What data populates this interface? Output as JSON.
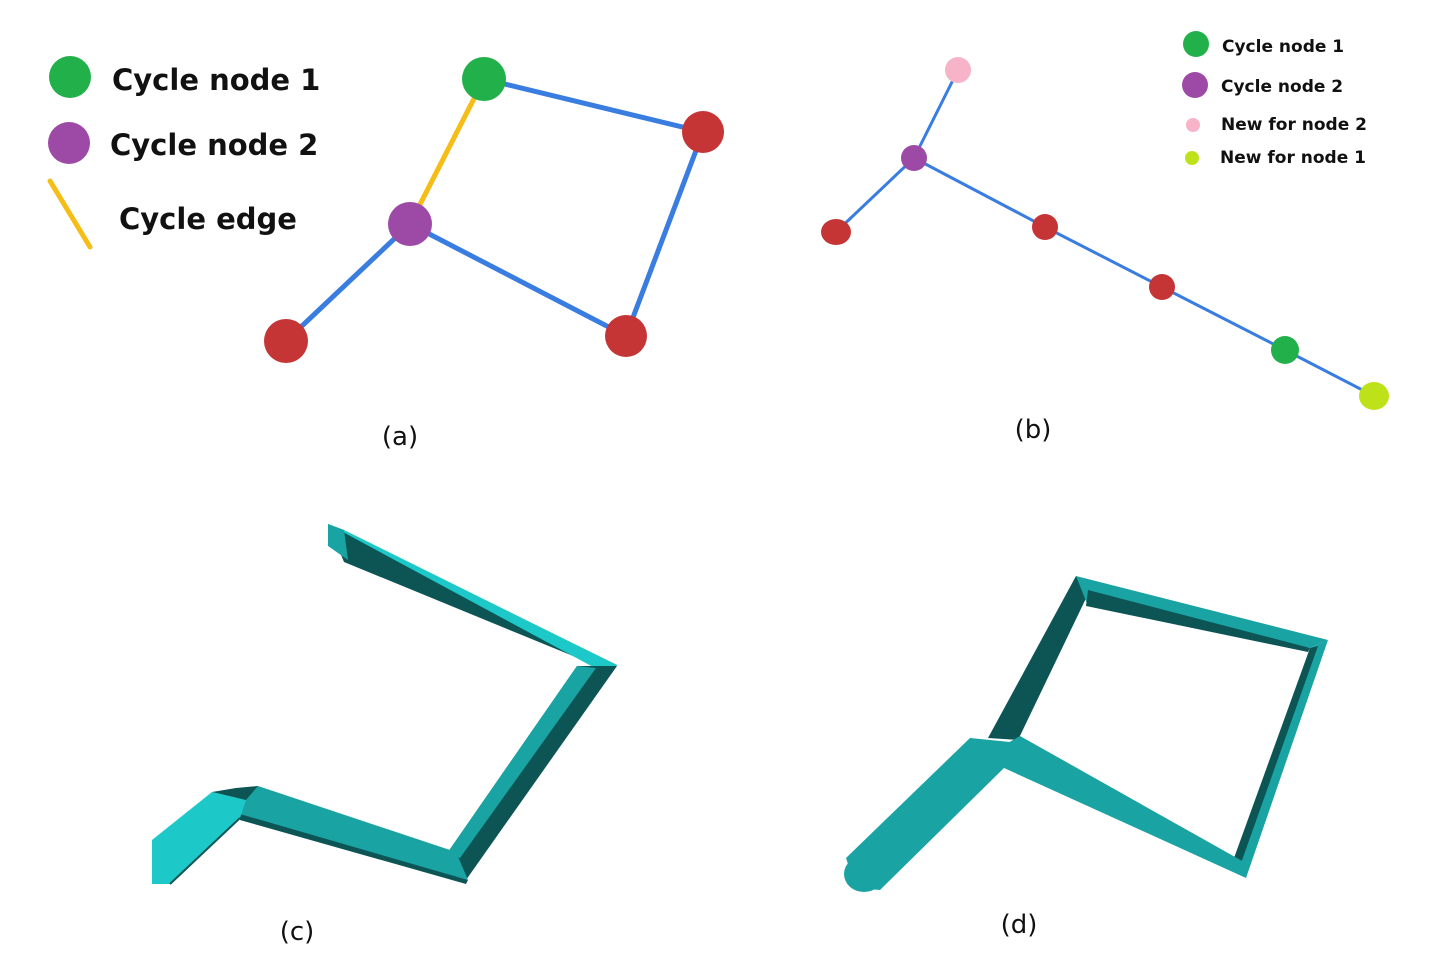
{
  "colors": {
    "cycle_node_1": "#22b04a",
    "cycle_node_2": "#9d4aa6",
    "cycle_edge": "#f5bd16",
    "edge": "#3a7de0",
    "node": "#c63535",
    "new_for_node_2": "#f7b3c8",
    "new_for_node_1": "#bde21a",
    "tube_light": "#1cc9c8",
    "tube_mid": "#1aa3a3",
    "tube_dark": "#0d5555"
  },
  "panel_a": {
    "legend": {
      "cycle_node_1": "Cycle node 1",
      "cycle_node_2": "Cycle node 2",
      "cycle_edge": "Cycle edge"
    },
    "caption": "(a)"
  },
  "panel_b": {
    "legend": {
      "cycle_node_1": "Cycle node 1",
      "cycle_node_2": "Cycle node 2",
      "new_for_node_2": "New for node 2",
      "new_for_node_1": "New for node 1"
    },
    "caption": "(b)"
  },
  "panel_c": {
    "caption": "(c)"
  },
  "panel_d": {
    "caption": "(d)"
  }
}
